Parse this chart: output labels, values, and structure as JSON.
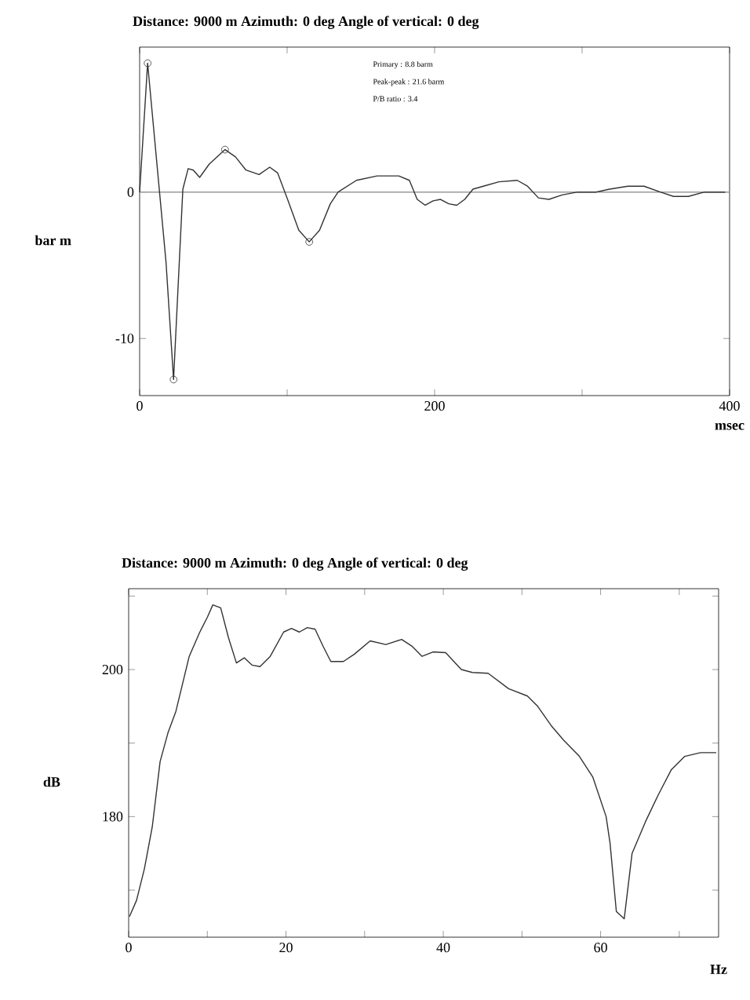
{
  "chart_data": [
    {
      "type": "line",
      "title": "Distance: 9000 m    Azimuth:  0 deg    Angle of vertical:  0 deg",
      "xlabel": "msec",
      "ylabel": "bar m",
      "xlim": [
        0,
        400
      ],
      "ylim": [
        -13.9,
        9.9
      ],
      "xticks": [
        0,
        {
          "value": 100,
          "label": null
        },
        200,
        {
          "value": 300,
          "label": null
        },
        400
      ],
      "yticks": [
        -10,
        0
      ],
      "ref_lines": [
        {
          "axis": "y",
          "value": 0,
          "color": "#999999"
        }
      ],
      "annotations": [
        "Primary  :  8.8 barm",
        "Peak-peak  :  21.6 barm",
        "P/B ratio  :  3.4"
      ],
      "series": [
        {
          "color": "#333333",
          "marker": "none",
          "line_style": "solid",
          "x": [
            0,
            5.4,
            17.9,
            23,
            29.3,
            32.9,
            36.4,
            40.7,
            47.1,
            57.9,
            65,
            72.1,
            81,
            88.2,
            93.6,
            100.7,
            107.9,
            115,
            122,
            129.3,
            134.6,
            147,
            161,
            175.7,
            182.9,
            188.2,
            193.6,
            199,
            204,
            209.6,
            215,
            220.4,
            226,
            233,
            243.6,
            256,
            263,
            270.4,
            277.5,
            286.4,
            297,
            309.6,
            318.6,
            331,
            342,
            353,
            362,
            372,
            383,
            397
          ],
          "values": [
            0,
            8.8,
            -4.8,
            -12.8,
            0.2,
            1.6,
            1.5,
            1.0,
            1.9,
            2.9,
            2.4,
            1.5,
            1.2,
            1.7,
            1.3,
            -0.6,
            -2.6,
            -3.4,
            -2.6,
            -0.8,
            0,
            0.8,
            1.1,
            1.1,
            0.8,
            -0.5,
            -0.9,
            -0.6,
            -0.5,
            -0.8,
            -0.9,
            -0.5,
            0.2,
            0.4,
            0.7,
            0.8,
            0.4,
            -0.4,
            -0.5,
            -0.2,
            0,
            0,
            0.2,
            0.4,
            0.4,
            0,
            -0.3,
            -0.3,
            0,
            0
          ]
        },
        {
          "type": "scatter",
          "color": "#333333",
          "marker": "circle",
          "x": [
            5.4,
            23,
            57.9,
            115
          ],
          "values": [
            8.8,
            -12.8,
            2.9,
            -3.4
          ]
        }
      ]
    },
    {
      "type": "line",
      "title": "Distance: 9000 m    Azimuth:  0 deg    Angle of vertical:  0 deg",
      "xlabel": "Hz",
      "ylabel": "dB",
      "xlim": [
        0,
        75
      ],
      "ylim": [
        163.6,
        211
      ],
      "xticks": [
        0,
        {
          "value": 10,
          "label": null
        },
        20,
        {
          "value": 30,
          "label": null
        },
        40,
        {
          "value": 50,
          "label": null
        },
        60,
        {
          "value": 70,
          "label": null
        }
      ],
      "yticks": [
        {
          "value": 170,
          "label": null
        },
        180,
        {
          "value": 190,
          "label": null
        },
        200,
        {
          "value": 210,
          "label": null
        }
      ],
      "series": [
        {
          "color": "#333333",
          "marker": "none",
          "line_style": "solid",
          "x": [
            0.1,
            1,
            2,
            3,
            4,
            5,
            6,
            7.7,
            9,
            10,
            10.7,
            11.7,
            12.7,
            13.7,
            14.7,
            15.7,
            16.7,
            18,
            19.7,
            20.7,
            21.7,
            22.7,
            23.7,
            24.7,
            25.7,
            27.3,
            28.7,
            30.7,
            32.7,
            34.7,
            36,
            37.3,
            38.7,
            40.3,
            42.3,
            43.7,
            45.7,
            48.3,
            50.7,
            52,
            53.7,
            55.3,
            57.3,
            59,
            60.7,
            61.2,
            62,
            63,
            64,
            65.7,
            67.3,
            69,
            70.7,
            72.7,
            74.7
          ],
          "values": [
            166.4,
            168.6,
            172.9,
            178.6,
            187.5,
            191.4,
            194.3,
            201.8,
            205,
            207.1,
            208.8,
            208.4,
            204.3,
            200.9,
            201.6,
            200.6,
            200.4,
            201.8,
            205.1,
            205.6,
            205.1,
            205.7,
            205.5,
            203.2,
            201.1,
            201.1,
            202.1,
            203.9,
            203.4,
            204.1,
            203.2,
            201.8,
            202.4,
            202.3,
            200,
            199.6,
            199.5,
            197.4,
            196.4,
            195,
            192.4,
            190.4,
            188.2,
            185.4,
            180,
            176.4,
            167.1,
            166.1,
            175,
            179.3,
            182.9,
            186.4,
            188.2,
            188.7,
            188.7
          ]
        }
      ]
    }
  ]
}
